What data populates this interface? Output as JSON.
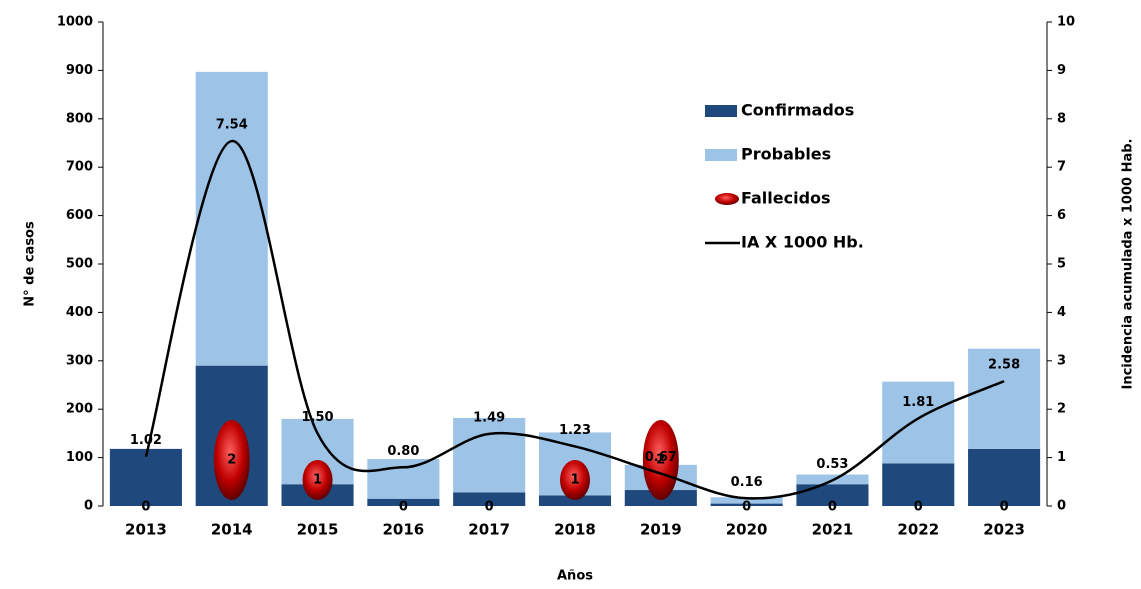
{
  "chart_data": {
    "type": "bar",
    "categories": [
      "2013",
      "2014",
      "2015",
      "2016",
      "2017",
      "2018",
      "2019",
      "2020",
      "2021",
      "2022",
      "2023"
    ],
    "x_label": "Años",
    "y_label": "N° de casos",
    "y2_label": "Incidencia acumulada  x  1000 Hab.",
    "series": [
      {
        "name": "Confirmados",
        "color": "#1f497d",
        "values": [
          118,
          290,
          45,
          15,
          28,
          22,
          33,
          5,
          45,
          88,
          118
        ]
      },
      {
        "name": "Probables",
        "color": "#9dc3e6",
        "values": [
          0,
          607,
          135,
          82,
          154,
          130,
          52,
          13,
          20,
          169,
          207
        ]
      },
      {
        "name": "Fallecidos",
        "color": "#c00000",
        "values": [
          0,
          2,
          1,
          0,
          0,
          1,
          2,
          0,
          0,
          0,
          0
        ]
      },
      {
        "name": "IA X 1000 Hb.",
        "color": "#000000",
        "axis": "y2",
        "values": [
          1.02,
          7.54,
          1.5,
          0.8,
          1.49,
          1.23,
          0.67,
          0.16,
          0.53,
          1.81,
          2.58
        ],
        "value_labels": [
          "1.02",
          "7.54",
          "1.50",
          "0.80",
          "1.49",
          "1.23",
          "0.67",
          "0.16",
          "0.53",
          "1.81",
          "2.58"
        ]
      }
    ],
    "ylim": [
      0,
      1000
    ],
    "yticks": [
      0,
      100,
      200,
      300,
      400,
      500,
      600,
      700,
      800,
      900,
      1000
    ],
    "y2lim": [
      0,
      10
    ],
    "y2ticks": [
      0,
      1,
      2,
      3,
      4,
      5,
      6,
      7,
      8,
      9,
      10
    ],
    "legend": "upper right"
  }
}
